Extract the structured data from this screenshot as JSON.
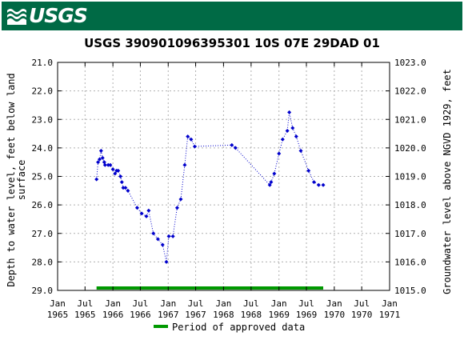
{
  "header": {
    "logo_text": "USGS",
    "brand_color": "#006a45"
  },
  "chart_data": {
    "type": "scatter",
    "title": "USGS 390901096395301 10S 07E 29DAD 01",
    "ylabel_left": "Depth to water level, feet below land surface",
    "ylabel_left_lines": [
      "Depth to water level, feet below land",
      "surface"
    ],
    "ylabel_right": "Groundwater level above NGVD 1929, feet",
    "y_left_range": [
      21.0,
      29.0
    ],
    "y_left_inverted": true,
    "y_left_ticks": [
      "21.0",
      "22.0",
      "23.0",
      "24.0",
      "25.0",
      "26.0",
      "27.0",
      "28.0",
      "29.0"
    ],
    "y_right_range": [
      1015.0,
      1023.0
    ],
    "y_right_ticks": [
      "1023.0",
      "1022.0",
      "1021.0",
      "1020.0",
      "1019.0",
      "1018.0",
      "1017.0",
      "1016.0",
      "1015.0"
    ],
    "x_range": [
      "1965-01-01",
      "1971-01-01"
    ],
    "x_ticks": [
      {
        "line1": "Jan",
        "line2": "1965",
        "date": "1965-01-01"
      },
      {
        "line1": "Jul",
        "line2": "1965",
        "date": "1965-07-01"
      },
      {
        "line1": "Jan",
        "line2": "1966",
        "date": "1966-01-01"
      },
      {
        "line1": "Jul",
        "line2": "1966",
        "date": "1966-07-01"
      },
      {
        "line1": "Jan",
        "line2": "1967",
        "date": "1967-01-01"
      },
      {
        "line1": "Jul",
        "line2": "1967",
        "date": "1967-07-01"
      },
      {
        "line1": "Jan",
        "line2": "1968",
        "date": "1968-01-01"
      },
      {
        "line1": "Jul",
        "line2": "1968",
        "date": "1968-07-01"
      },
      {
        "line1": "Jan",
        "line2": "1969",
        "date": "1969-01-01"
      },
      {
        "line1": "Jul",
        "line2": "1969",
        "date": "1969-07-01"
      },
      {
        "line1": "Jan",
        "line2": "1970",
        "date": "1970-01-01"
      },
      {
        "line1": "Jul",
        "line2": "1970",
        "date": "1970-07-01"
      },
      {
        "line1": "Jan",
        "line2": "1971",
        "date": "1971-01-01"
      }
    ],
    "grid": true,
    "series": [
      {
        "color": "#0000cc",
        "style": "dotted line with diamond markers",
        "points": [
          {
            "x": "1965-09-15",
            "y": 25.1
          },
          {
            "x": "1965-09-25",
            "y": 24.5
          },
          {
            "x": "1965-10-05",
            "y": 24.4
          },
          {
            "x": "1965-10-15",
            "y": 24.1
          },
          {
            "x": "1965-10-25",
            "y": 24.35
          },
          {
            "x": "1965-11-05",
            "y": 24.5
          },
          {
            "x": "1965-11-10",
            "y": 24.6
          },
          {
            "x": "1965-12-01",
            "y": 24.6
          },
          {
            "x": "1965-12-15",
            "y": 24.6
          },
          {
            "x": "1966-01-01",
            "y": 24.75
          },
          {
            "x": "1966-01-15",
            "y": 24.9
          },
          {
            "x": "1966-01-25",
            "y": 24.8
          },
          {
            "x": "1966-02-05",
            "y": 24.8
          },
          {
            "x": "1966-02-20",
            "y": 25.0
          },
          {
            "x": "1966-03-01",
            "y": 25.2
          },
          {
            "x": "1966-03-10",
            "y": 25.4
          },
          {
            "x": "1966-03-25",
            "y": 25.4
          },
          {
            "x": "1966-04-10",
            "y": 25.5
          },
          {
            "x": "1966-06-10",
            "y": 26.1
          },
          {
            "x": "1966-07-10",
            "y": 26.3
          },
          {
            "x": "1966-08-10",
            "y": 26.4
          },
          {
            "x": "1966-08-25",
            "y": 26.2
          },
          {
            "x": "1966-09-25",
            "y": 27.0
          },
          {
            "x": "1966-10-25",
            "y": 27.2
          },
          {
            "x": "1966-11-25",
            "y": 27.4
          },
          {
            "x": "1966-12-20",
            "y": 28.0
          },
          {
            "x": "1967-01-05",
            "y": 27.1
          },
          {
            "x": "1967-02-01",
            "y": 27.1
          },
          {
            "x": "1967-03-01",
            "y": 26.1
          },
          {
            "x": "1967-03-25",
            "y": 25.8
          },
          {
            "x": "1967-04-20",
            "y": 24.6
          },
          {
            "x": "1967-05-10",
            "y": 23.6
          },
          {
            "x": "1967-06-01",
            "y": 23.7
          },
          {
            "x": "1967-06-25",
            "y": 23.95
          },
          {
            "x": "1968-02-25",
            "y": 23.9
          },
          {
            "x": "1968-03-20",
            "y": 24.0
          },
          {
            "x": "1968-11-01",
            "y": 25.3
          },
          {
            "x": "1968-11-10",
            "y": 25.2
          },
          {
            "x": "1968-12-01",
            "y": 24.9
          },
          {
            "x": "1969-01-01",
            "y": 24.2
          },
          {
            "x": "1969-01-25",
            "y": 23.7
          },
          {
            "x": "1969-02-25",
            "y": 23.4
          },
          {
            "x": "1969-03-10",
            "y": 22.75
          },
          {
            "x": "1969-04-01",
            "y": 23.3
          },
          {
            "x": "1969-04-25",
            "y": 23.6
          },
          {
            "x": "1969-05-25",
            "y": 24.1
          },
          {
            "x": "1969-07-15",
            "y": 24.8
          },
          {
            "x": "1969-08-20",
            "y": 25.2
          },
          {
            "x": "1969-09-20",
            "y": 25.3
          },
          {
            "x": "1969-10-20",
            "y": 25.3
          }
        ]
      }
    ],
    "approved_period": {
      "start": "1965-09-15",
      "end": "1969-10-20",
      "color": "#009900"
    },
    "legend": {
      "label": "Period of approved data",
      "color": "#009900",
      "position": "bottom-center"
    }
  }
}
